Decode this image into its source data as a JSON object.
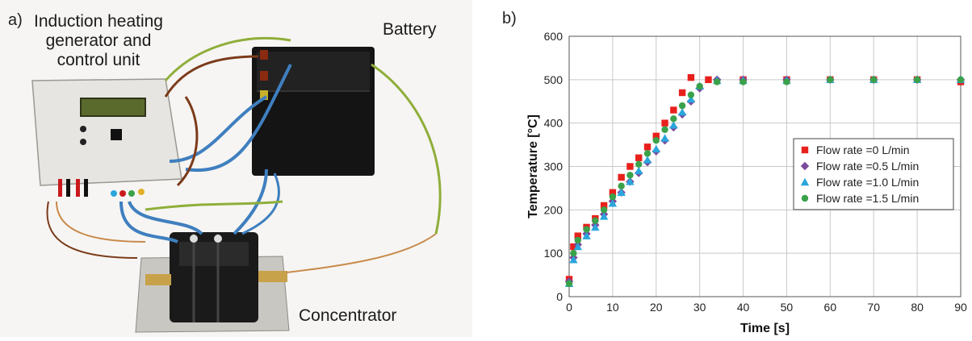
{
  "panel_a": {
    "label": "a)",
    "title_lines": [
      "Induction heating",
      "generator and",
      "control unit"
    ],
    "battery_label": "Battery",
    "concentrator_label": "Concentrator"
  },
  "panel_b": {
    "label": "b)"
  },
  "colors": {
    "series_0": "#e8201c",
    "series_1": "#7a4a9c",
    "series_2": "#2aa6dc",
    "series_3": "#3aa24a"
  },
  "chart_data": {
    "type": "scatter",
    "xlabel": "Time [s]",
    "ylabel": "Temperature [°C]",
    "xlim": [
      0,
      90
    ],
    "ylim": [
      0,
      600
    ],
    "xticks": [
      "0",
      "10",
      "20",
      "30",
      "40",
      "50",
      "60",
      "70",
      "80",
      "90"
    ],
    "yticks": [
      "0",
      "100",
      "200",
      "300",
      "400",
      "500",
      "600"
    ],
    "grid": true,
    "legend_position": "center-right",
    "series": [
      {
        "name": "Flow rate =0 L/min",
        "marker": "square",
        "x": [
          0,
          1,
          2,
          4,
          6,
          8,
          10,
          12,
          14,
          16,
          18,
          20,
          22,
          24,
          26,
          28,
          32,
          40,
          50,
          60,
          70,
          80,
          90
        ],
        "y": [
          40,
          115,
          140,
          160,
          180,
          210,
          240,
          275,
          300,
          320,
          345,
          370,
          400,
          430,
          470,
          505,
          500,
          500,
          500,
          500,
          500,
          500,
          495
        ]
      },
      {
        "name": "Flow rate =0.5 L/min",
        "marker": "diamond",
        "x": [
          0,
          1,
          2,
          4,
          6,
          8,
          10,
          12,
          14,
          16,
          18,
          20,
          22,
          24,
          26,
          28,
          30,
          34,
          40,
          50,
          60,
          70,
          80,
          90
        ],
        "y": [
          35,
          90,
          120,
          145,
          165,
          190,
          220,
          240,
          265,
          285,
          310,
          335,
          360,
          390,
          420,
          450,
          480,
          500,
          500,
          500,
          500,
          500,
          500,
          500
        ]
      },
      {
        "name": "Flow rate =1.0 L/min",
        "marker": "triangle",
        "x": [
          0,
          1,
          2,
          4,
          6,
          8,
          10,
          12,
          14,
          16,
          18,
          20,
          22,
          24,
          26,
          28,
          30,
          34,
          40,
          50,
          60,
          70,
          80,
          90
        ],
        "y": [
          30,
          85,
          115,
          140,
          160,
          185,
          215,
          240,
          265,
          290,
          315,
          340,
          365,
          395,
          425,
          455,
          485,
          498,
          498,
          498,
          500,
          500,
          500,
          500
        ]
      },
      {
        "name": "Flow rate =1.5 L/min",
        "marker": "circle",
        "x": [
          0,
          1,
          2,
          4,
          6,
          8,
          10,
          12,
          14,
          16,
          18,
          20,
          22,
          24,
          26,
          28,
          30,
          34,
          40,
          50,
          60,
          70,
          80,
          90
        ],
        "y": [
          30,
          100,
          130,
          155,
          175,
          200,
          230,
          255,
          280,
          305,
          330,
          360,
          385,
          410,
          440,
          465,
          485,
          495,
          495,
          495,
          500,
          500,
          500,
          500
        ]
      }
    ]
  }
}
